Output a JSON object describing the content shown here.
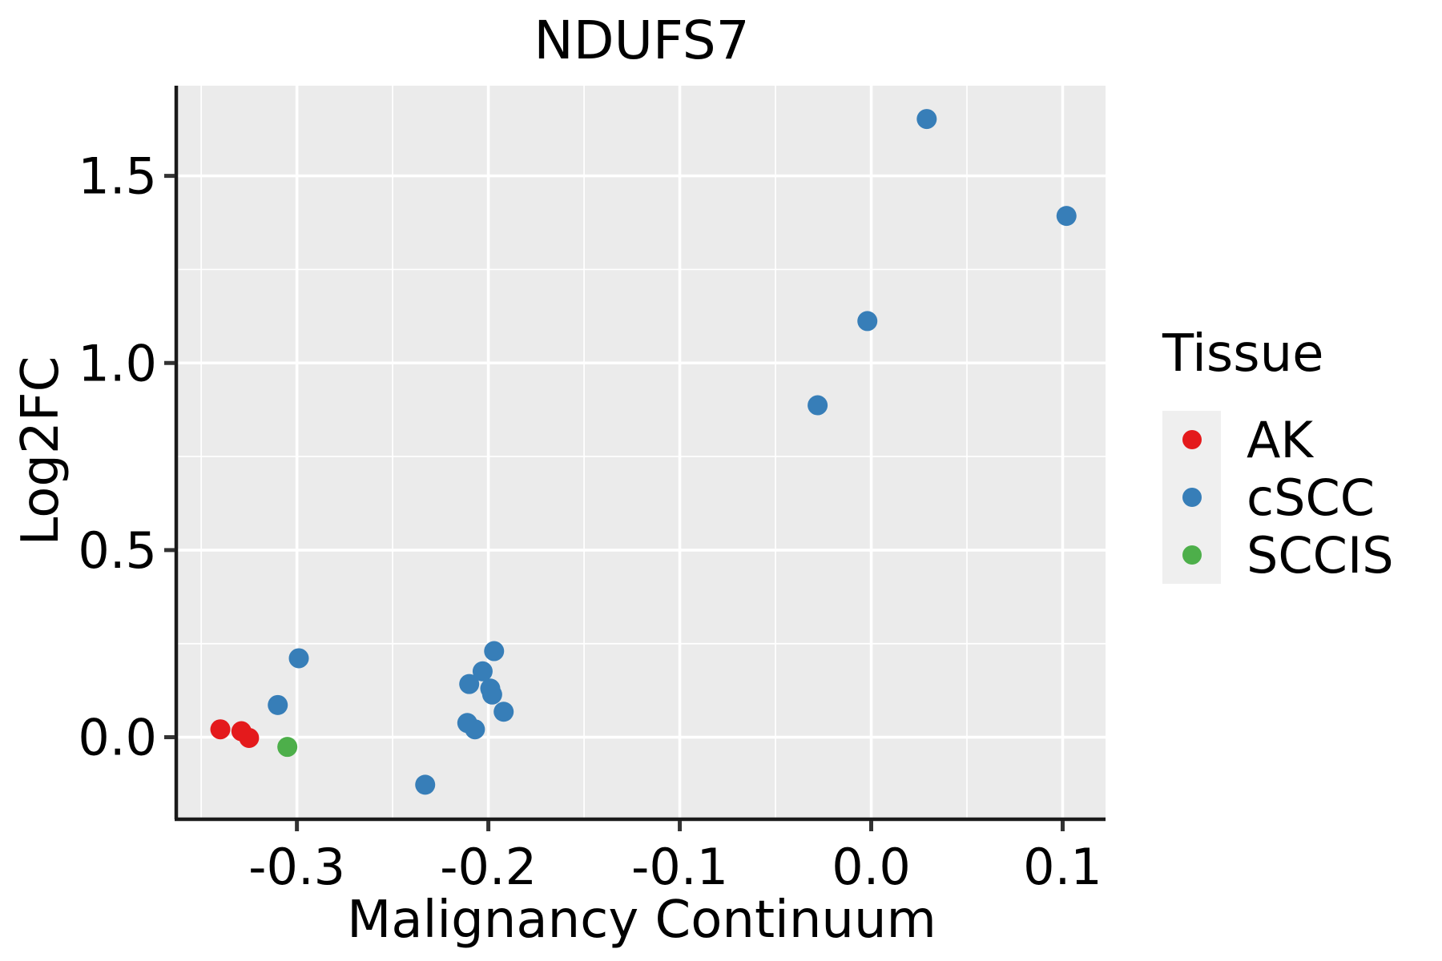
{
  "figure": {
    "title": "NDUFS7",
    "x_axis_label": "Malignancy Continuum",
    "y_axis_label": "Log2FC",
    "legend": {
      "title": "Tissue",
      "items": [
        {
          "label": "AK",
          "color": "#E41A1C"
        },
        {
          "label": "cSCC",
          "color": "#377EB8"
        },
        {
          "label": "SCCIS",
          "color": "#4DAF4A"
        }
      ]
    },
    "colors": {
      "panel_bg": "#EBEBEB",
      "grid": "#FFFFFF",
      "axis_line": "#1a1a1a",
      "tick": "#333333",
      "text": "#000000",
      "legend_key_bg": "#EFEFEF"
    }
  },
  "chart_data": {
    "type": "scatter",
    "title": "NDUFS7",
    "xlabel": "Malignancy Continuum",
    "ylabel": "Log2FC",
    "xlim": [
      -0.3622,
      0.1224
    ],
    "ylim": [
      -0.215,
      1.741
    ],
    "x_ticks": [
      {
        "v": -0.3,
        "label": "-0.3"
      },
      {
        "v": -0.2,
        "label": "-0.2"
      },
      {
        "v": -0.1,
        "label": "-0.1"
      },
      {
        "v": 0.0,
        "label": "0.0"
      },
      {
        "v": 0.1,
        "label": "0.1"
      }
    ],
    "y_ticks": [
      {
        "v": 0.0,
        "label": "0.0"
      },
      {
        "v": 0.5,
        "label": "0.5"
      },
      {
        "v": 1.0,
        "label": "1.0"
      },
      {
        "v": 1.5,
        "label": "1.5"
      }
    ],
    "grid": "major+minor",
    "legend_position": "right",
    "point_radius": 12.5,
    "series": [
      {
        "name": "AK",
        "color": "#E41A1C",
        "points": [
          [
            -0.34,
            0.021
          ],
          [
            -0.329,
            0.016
          ],
          [
            -0.325,
            -0.002
          ]
        ]
      },
      {
        "name": "cSCC",
        "color": "#377EB8",
        "points": [
          [
            -0.31,
            0.086
          ],
          [
            -0.299,
            0.211
          ],
          [
            -0.233,
            -0.127
          ],
          [
            -0.211,
            0.038
          ],
          [
            -0.21,
            0.142
          ],
          [
            -0.207,
            0.021
          ],
          [
            -0.203,
            0.176
          ],
          [
            -0.199,
            0.13
          ],
          [
            -0.198,
            0.114
          ],
          [
            -0.197,
            0.23
          ],
          [
            -0.192,
            0.068
          ],
          [
            -0.028,
            0.887
          ],
          [
            -0.002,
            1.112
          ],
          [
            0.029,
            1.652
          ],
          [
            0.102,
            1.393
          ]
        ]
      },
      {
        "name": "SCCIS",
        "color": "#4DAF4A",
        "points": [
          [
            -0.305,
            -0.026
          ]
        ]
      }
    ]
  }
}
